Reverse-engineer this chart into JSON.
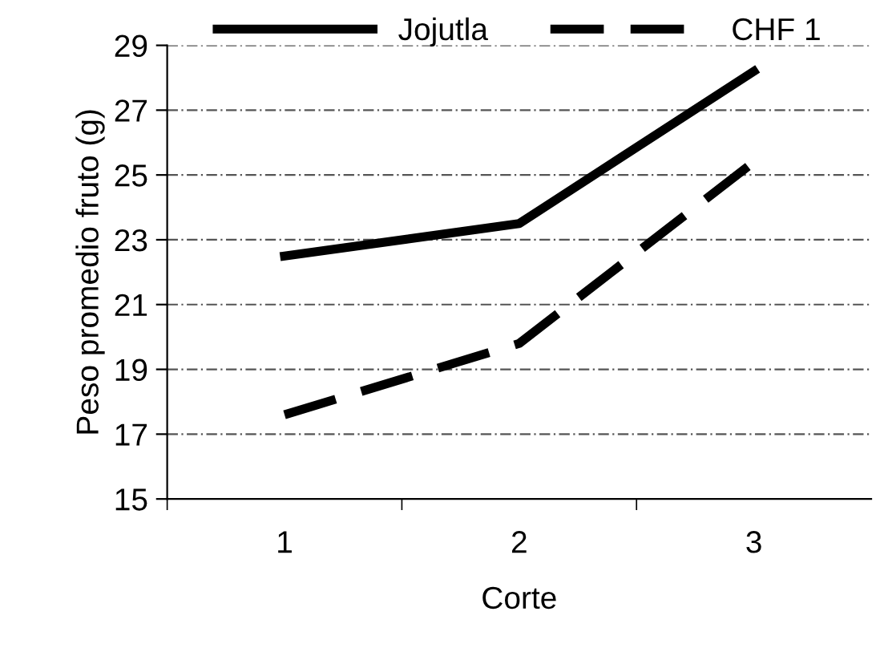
{
  "chart_data": {
    "type": "line",
    "xlabel": "Corte",
    "ylabel": "Peso promedio fruto (g)",
    "categories": [
      "1",
      "2",
      "3"
    ],
    "series": [
      {
        "name": "Jojutla",
        "color": "#000000",
        "values": [
          22.5,
          23.5,
          28.2
        ],
        "line_style": "solid"
      },
      {
        "name": "CHF 1",
        "color": "#000000",
        "values": [
          17.6,
          19.8,
          25.4
        ],
        "line_style": "dashed"
      }
    ],
    "ylim": [
      15,
      29
    ],
    "yticks": [
      15,
      17,
      19,
      21,
      23,
      25,
      27,
      29
    ],
    "grid": "y",
    "legend": "top",
    "marker": "none"
  }
}
